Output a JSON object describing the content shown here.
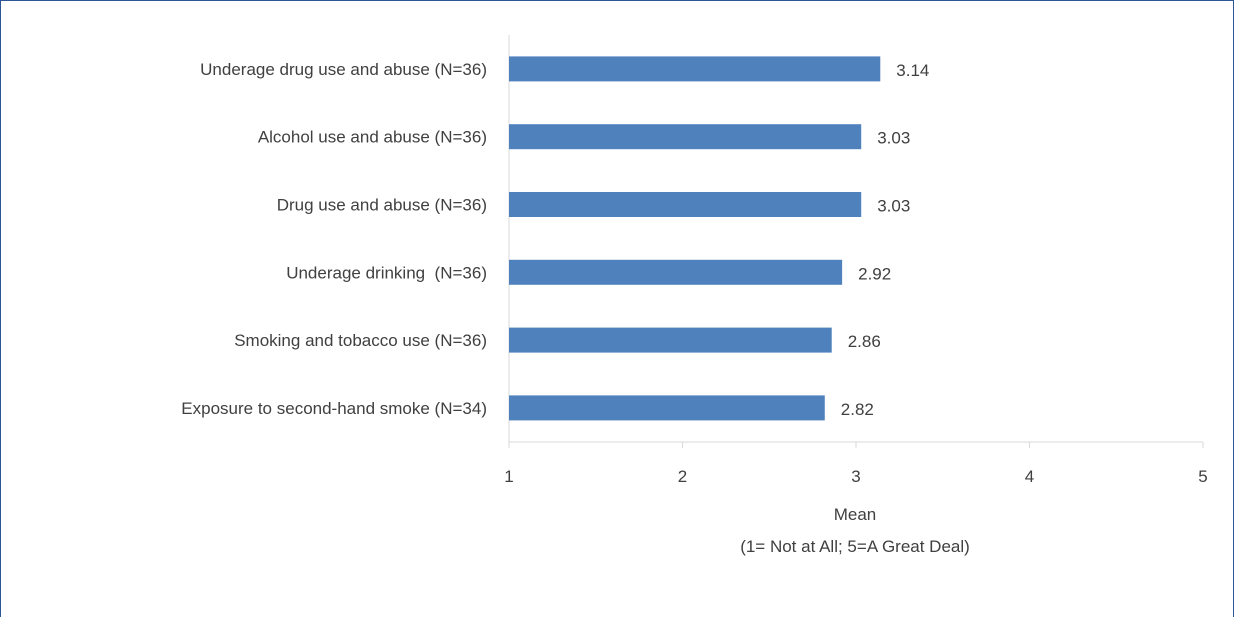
{
  "chart_data": {
    "type": "bar",
    "orientation": "horizontal",
    "categories": [
      "Underage drug use and abuse (N=36)",
      "Alcohol use and abuse (N=36)",
      "Drug use and abuse (N=36)",
      "Underage drinking  (N=36)",
      "Smoking and tobacco use (N=36)",
      "Exposure to second-hand smoke (N=34)"
    ],
    "values": [
      3.14,
      3.03,
      3.03,
      2.92,
      2.86,
      2.82
    ],
    "value_labels": [
      "3.14",
      "3.03",
      "3.03",
      "2.92",
      "2.86",
      "2.82"
    ],
    "xlim": [
      1,
      5
    ],
    "xticks": [
      "1",
      "2",
      "3",
      "4",
      "5"
    ],
    "xlabel": "Mean",
    "xlabel_sub": "(1= Not at All; 5=A Great Deal)",
    "bar_color": "#4f81bd",
    "grid": false
  }
}
